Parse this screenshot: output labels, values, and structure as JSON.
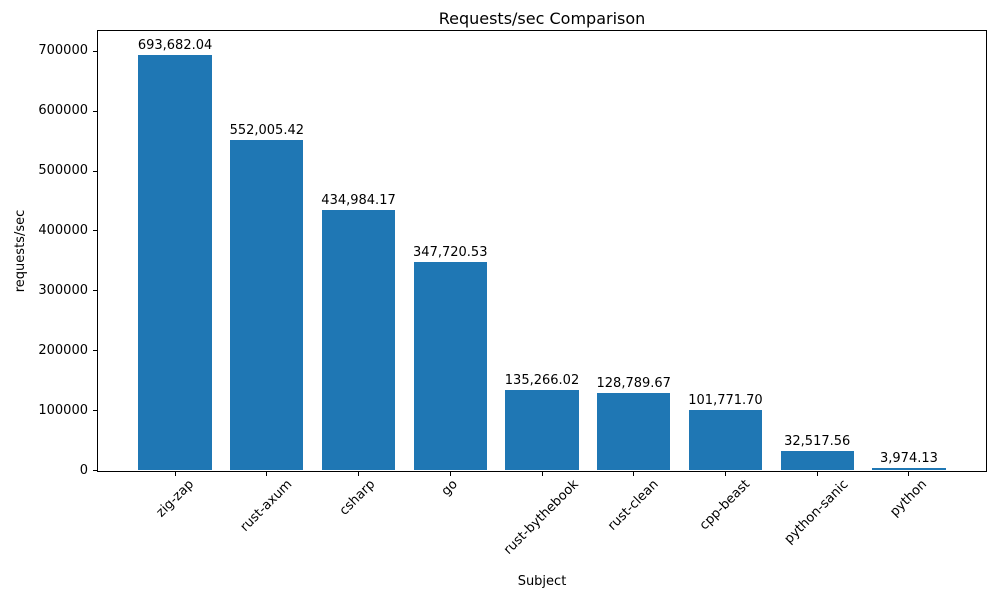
{
  "chart_data": {
    "type": "bar",
    "title": "Requests/sec Comparison",
    "xlabel": "Subject",
    "ylabel": "requests/sec",
    "categories": [
      "zig-zap",
      "rust-axum",
      "csharp",
      "go",
      "rust-bythebook",
      "rust-clean",
      "cpp-beast",
      "python-sanic",
      "python"
    ],
    "values": [
      693682.04,
      552005.42,
      434984.17,
      347720.53,
      135266.02,
      128789.67,
      101771.7,
      32517.56,
      3974.13
    ],
    "value_labels": [
      "693,682.04",
      "552,005.42",
      "434,984.17",
      "347,720.53",
      "135,266.02",
      "128,789.67",
      "101,771.70",
      "32,517.56",
      "3,974.13"
    ],
    "yticks": [
      0,
      100000,
      200000,
      300000,
      400000,
      500000,
      600000,
      700000
    ],
    "ytick_labels": [
      "0",
      "100000",
      "200000",
      "300000",
      "400000",
      "500000",
      "600000",
      "700000"
    ],
    "ylim": [
      0,
      734000
    ],
    "bar_color": "#1f77b4",
    "text_color": "#000000",
    "spine_color": "#000000",
    "grid": false,
    "legend": null,
    "x_tick_rotation_deg": 45
  }
}
